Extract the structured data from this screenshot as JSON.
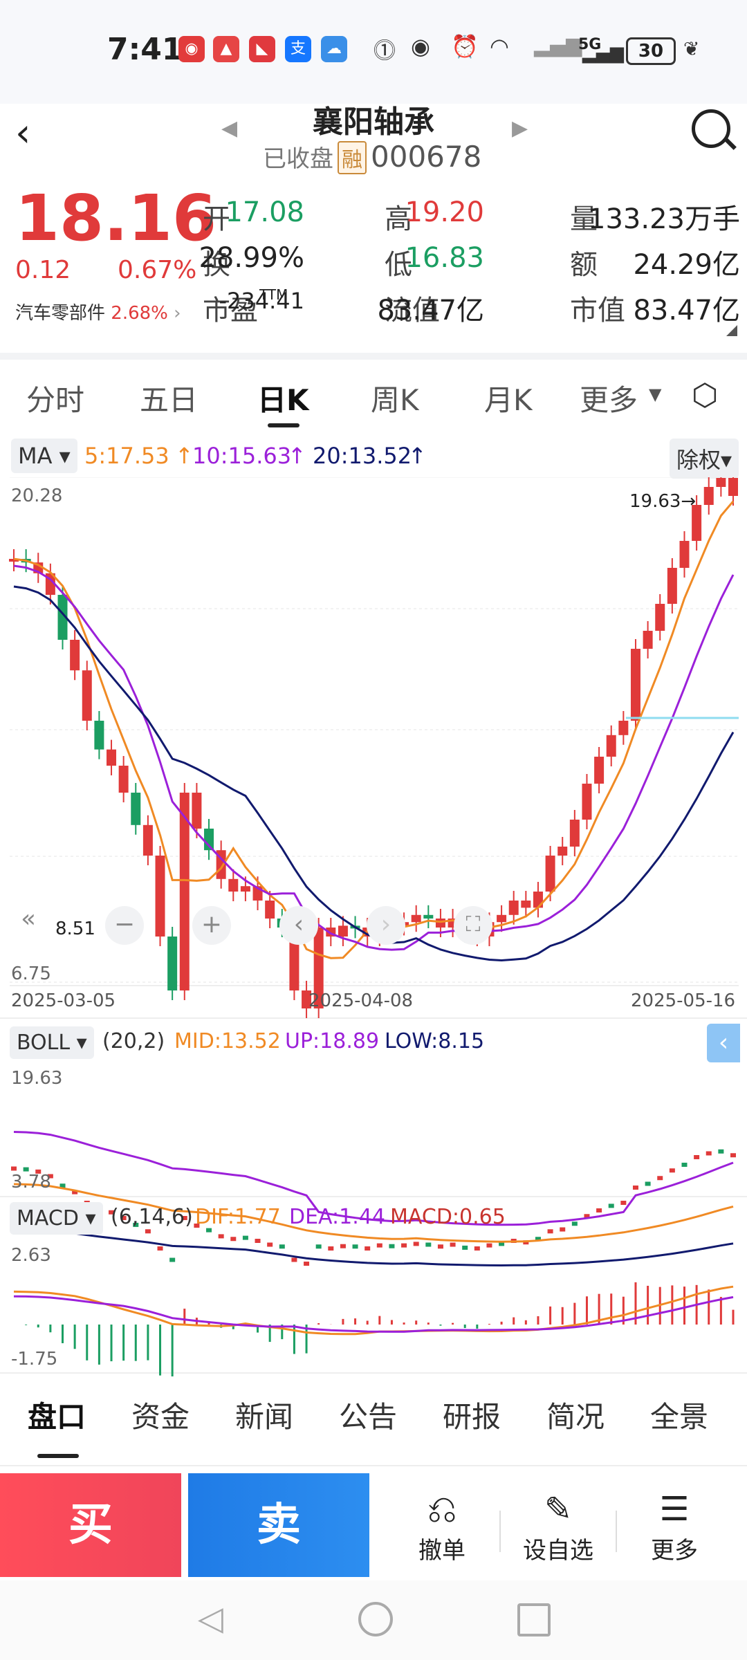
{
  "status_bar": {
    "time": "7:41",
    "network": "5G",
    "battery": "30",
    "app_icons": [
      "news-app-icon",
      "stock-app-icon",
      "chart-app-icon",
      "alipay-icon",
      "cloud-app-icon"
    ],
    "system_icons": [
      "nfc-icon",
      "eye-icon",
      "alarm-icon",
      "wifi-icon",
      "signal-icon"
    ]
  },
  "header": {
    "title": "襄阳轴承",
    "status": "已收盘",
    "badge": "融",
    "code": "000678"
  },
  "quote": {
    "price": "18.16",
    "change": "0.12",
    "change_pct": "0.67%",
    "sector_name": "汽车零部件",
    "sector_pct": "2.68%",
    "fields": [
      {
        "label": "开",
        "value": "17.08",
        "color": "green"
      },
      {
        "label": "高",
        "value": "19.20",
        "color": "red"
      },
      {
        "label": "量",
        "value": "133.23万手",
        "color": "dark"
      },
      {
        "label": "换",
        "value": "28.99%",
        "color": "dark"
      },
      {
        "label": "低",
        "value": "16.83",
        "color": "green"
      },
      {
        "label": "额",
        "value": "24.29亿",
        "color": "dark"
      },
      {
        "label": "市盈",
        "sup": "TTM",
        "value": "-234.41",
        "color": "dark"
      },
      {
        "label": "流值",
        "value": "83.47亿",
        "color": "dark"
      },
      {
        "label": "市值",
        "value": "83.47亿",
        "color": "dark"
      }
    ]
  },
  "period_tabs": [
    "分时",
    "五日",
    "日K",
    "周K",
    "月K",
    "更多"
  ],
  "active_period": "日K",
  "ma": {
    "selector": "MA",
    "ma5": "5:17.53",
    "ma10": "10:15.63",
    "ma20": "20:13.52",
    "adjust": "除权"
  },
  "kchart": {
    "y_top": "20.28",
    "y_bottom": "6.75",
    "max_label": "19.63→",
    "min_label": "8.51",
    "dates": [
      "2025-03-05",
      "2025-04-08",
      "2025-05-16"
    ],
    "colors": {
      "up": "#e03a3a",
      "down": "#1b9e62",
      "ma5": "#f08a24",
      "ma10": "#9b20d9",
      "ma20": "#111a6e"
    }
  },
  "boll": {
    "selector": "BOLL",
    "params": "(20,2)",
    "mid": "MID:13.52",
    "up": "UP:18.89",
    "low": "LOW:8.15",
    "y_top": "19.63",
    "y_bottom": "3.78"
  },
  "macd": {
    "selector": "MACD",
    "params": "(6,14,6)",
    "dif": "DIF:1.77",
    "dea": "DEA:1.44",
    "macd": "MACD:0.65",
    "y_top": "2.63",
    "y_bottom": "-1.75"
  },
  "bottom_tabs": [
    "盘口",
    "资金",
    "新闻",
    "公告",
    "研报",
    "简况",
    "全景"
  ],
  "active_bottom": "盘口",
  "actions": {
    "buy": "买",
    "sell": "卖",
    "cancel": "撤单",
    "watchlist": "设自选",
    "more": "更多"
  }
}
